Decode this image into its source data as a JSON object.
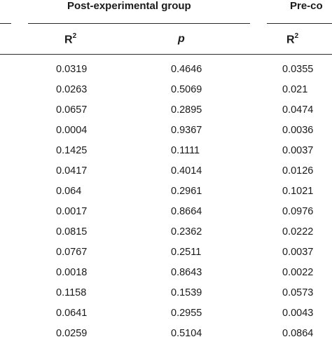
{
  "groups": {
    "post": "Post-experimental group",
    "pre": "Pre-co"
  },
  "headers": {
    "col1_base": "R",
    "col1_sup": "2",
    "col2": "p",
    "col3_base": "R",
    "col3_sup": "2"
  },
  "rows": [
    [
      "0.0319",
      "0.4646",
      "0.0355"
    ],
    [
      "0.0263",
      "0.5069",
      "0.021"
    ],
    [
      "0.0657",
      "0.2895",
      "0.0474"
    ],
    [
      "0.0004",
      "0.9367",
      "0.0036"
    ],
    [
      "0.1425",
      "0.1111",
      "0.0037"
    ],
    [
      "0.0417",
      "0.4014",
      "0.0126"
    ],
    [
      "0.064",
      "0.2961",
      "0.1021"
    ],
    [
      "0.0017",
      "0.8664",
      "0.0976"
    ],
    [
      "0.0815",
      "0.2362",
      "0.0222"
    ],
    [
      "0.0767",
      "0.2511",
      "0.0037"
    ],
    [
      "0.0018",
      "0.8643",
      "0.0022"
    ],
    [
      "0.1158",
      "0.1539",
      "0.0573"
    ],
    [
      "0.0641",
      "0.2955",
      "0.0043"
    ],
    [
      "0.0259",
      "0.5104",
      "0.0864"
    ]
  ]
}
